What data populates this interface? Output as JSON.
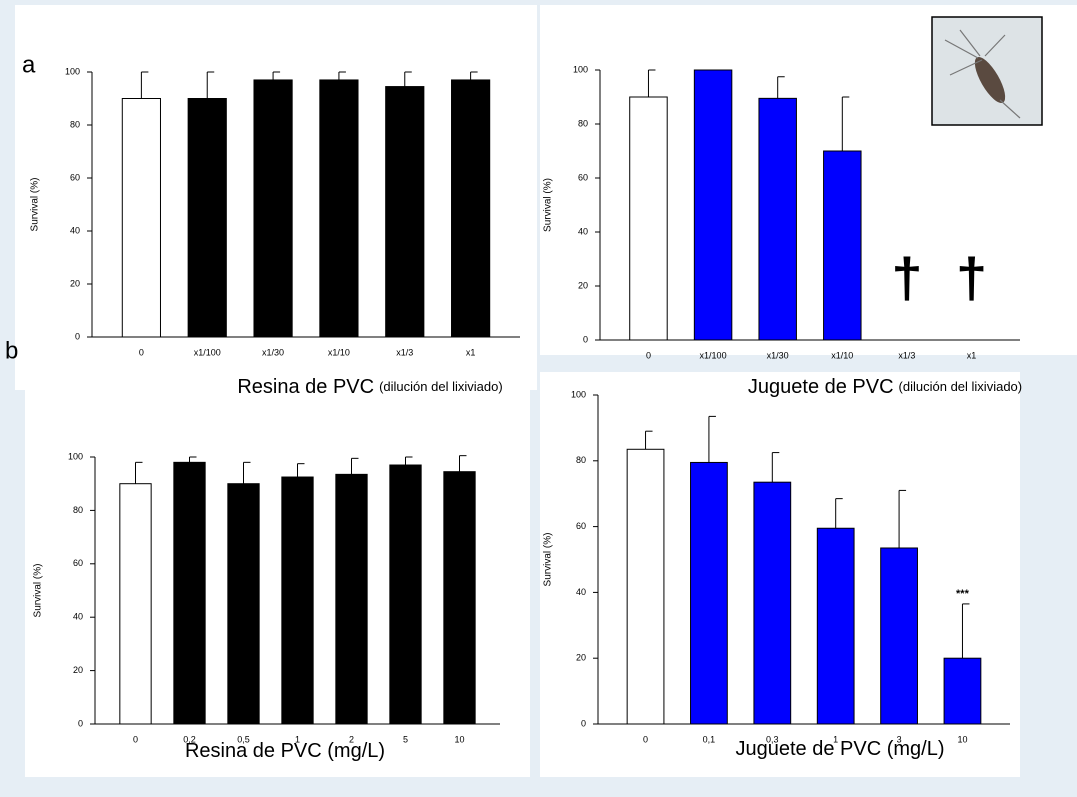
{
  "panel_labels": [
    "a",
    "b"
  ],
  "chart_data": [
    {
      "type": "bar",
      "ylabel": "Survival (%)",
      "xlabel": "Resina de PVC",
      "xlabel_note": "(dilución del lixiviado)",
      "categories": [
        "0",
        "x1/100",
        "x1/30",
        "x1/10",
        "x1/3",
        "x1"
      ],
      "values": [
        90,
        90,
        97,
        97,
        94.5,
        97
      ],
      "errors": [
        10,
        10,
        3,
        3,
        5.5,
        3
      ],
      "colors": [
        "#ffffff",
        "#000000",
        "#000000",
        "#000000",
        "#000000",
        "#000000"
      ],
      "ylim": [
        0,
        100
      ],
      "yticks": [
        0,
        20,
        40,
        60,
        80,
        100
      ]
    },
    {
      "type": "bar",
      "ylabel": "Survival (%)",
      "xlabel": "Juguete de PVC",
      "xlabel_note": "(dilución del lixiviado)",
      "categories": [
        "0",
        "x1/100",
        "x1/30",
        "x1/10",
        "x1/3",
        "x1"
      ],
      "values": [
        90,
        100,
        89.5,
        70,
        null,
        null
      ],
      "errors": [
        10,
        0,
        8,
        20,
        null,
        null
      ],
      "colors": [
        "#ffffff",
        "#0000ff",
        "#0000ff",
        "#0000ff",
        "#0000ff",
        "#0000ff"
      ],
      "annotations": [
        {
          "category": "x1/3",
          "text": "†"
        },
        {
          "category": "x1",
          "text": "†"
        }
      ],
      "ylim": [
        0,
        100
      ],
      "yticks": [
        0,
        20,
        40,
        60,
        80,
        100
      ]
    },
    {
      "type": "bar",
      "ylabel": "Survival (%)",
      "xlabel": "Resina de PVC (mg/L)",
      "categories": [
        "0",
        "0,2",
        "0,5",
        "1",
        "2",
        "5",
        "10"
      ],
      "values": [
        90,
        98,
        90,
        92.5,
        93.5,
        97,
        94.5
      ],
      "errors": [
        8,
        2,
        8,
        5,
        6,
        3,
        6
      ],
      "colors": [
        "#ffffff",
        "#000000",
        "#000000",
        "#000000",
        "#000000",
        "#000000",
        "#000000"
      ],
      "ylim": [
        0,
        100
      ],
      "yticks": [
        0,
        20,
        40,
        60,
        80,
        100
      ]
    },
    {
      "type": "bar",
      "ylabel": "Survival (%)",
      "xlabel": "Juguete de PVC (mg/L)",
      "categories": [
        "0",
        "0,1",
        "0,3",
        "1",
        "3",
        "10"
      ],
      "values": [
        83.5,
        79.5,
        73.5,
        59.5,
        53.5,
        20
      ],
      "errors": [
        5.5,
        14,
        9,
        9,
        17.5,
        16.5
      ],
      "colors": [
        "#ffffff",
        "#0000ff",
        "#0000ff",
        "#0000ff",
        "#0000ff",
        "#0000ff"
      ],
      "annotations": [
        {
          "category": "10",
          "text": "***"
        }
      ],
      "ylim": [
        0,
        100
      ],
      "yticks": [
        0,
        20,
        40,
        60,
        80,
        100
      ]
    }
  ]
}
